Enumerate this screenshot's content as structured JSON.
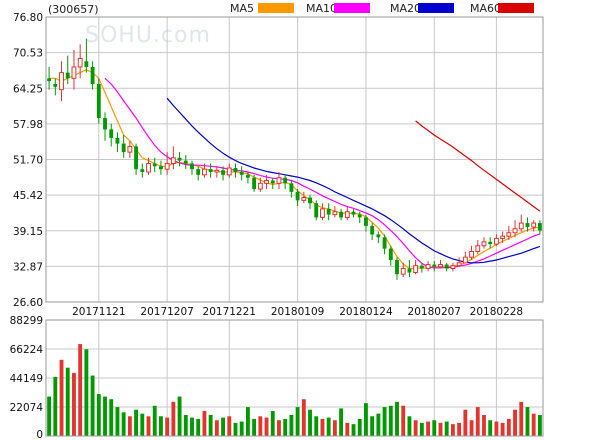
{
  "header": {
    "code": "(300657)",
    "watermark": "SOHU.com",
    "legend": [
      {
        "label": "MA5",
        "color": "#FF9900"
      },
      {
        "label": "MA10",
        "color": "#FF00FF"
      },
      {
        "label": "MA20",
        "color": "#0000CC"
      },
      {
        "label": "MA60",
        "color": "#DD0000"
      }
    ]
  },
  "colors": {
    "up": "#E3342F",
    "down": "#009900",
    "grid": "#C8C8C8",
    "border": "#999999"
  },
  "chart_data": [
    {
      "type": "candlestick",
      "title": "",
      "y_ticks": [
        "76.80",
        "70.53",
        "64.25",
        "57.98",
        "51.70",
        "45.42",
        "39.15",
        "32.87",
        "26.60"
      ],
      "ylim": [
        26.6,
        76.8
      ],
      "x_ticks": [
        {
          "label": "20171121",
          "index": 8
        },
        {
          "label": "20171207",
          "index": 19
        },
        {
          "label": "20171221",
          "index": 29
        },
        {
          "label": "20180109",
          "index": 40
        },
        {
          "label": "20180124",
          "index": 51
        },
        {
          "label": "20180207",
          "index": 62
        },
        {
          "label": "20180228",
          "index": 72
        }
      ],
      "candles": [
        {
          "o": 66,
          "c": 65.5,
          "h": 68,
          "l": 64
        },
        {
          "o": 65,
          "c": 64.5,
          "h": 66,
          "l": 63
        },
        {
          "o": 64,
          "c": 67,
          "h": 69,
          "l": 62
        },
        {
          "o": 67,
          "c": 66,
          "h": 70,
          "l": 65
        },
        {
          "o": 66,
          "c": 68,
          "h": 71,
          "l": 64
        },
        {
          "o": 68,
          "c": 69.5,
          "h": 72,
          "l": 66
        },
        {
          "o": 69,
          "c": 68,
          "h": 73,
          "l": 67
        },
        {
          "o": 68,
          "c": 65,
          "h": 69,
          "l": 64
        },
        {
          "o": 65,
          "c": 59,
          "h": 66,
          "l": 58
        },
        {
          "o": 59,
          "c": 57,
          "h": 60,
          "l": 55
        },
        {
          "o": 57,
          "c": 55.5,
          "h": 58,
          "l": 54
        },
        {
          "o": 55.5,
          "c": 54.5,
          "h": 56.5,
          "l": 53
        },
        {
          "o": 54.5,
          "c": 53,
          "h": 56,
          "l": 52
        },
        {
          "o": 53,
          "c": 54,
          "h": 55,
          "l": 52
        },
        {
          "o": 54,
          "c": 50,
          "h": 54.5,
          "l": 49
        },
        {
          "o": 50,
          "c": 49.5,
          "h": 51,
          "l": 48.5
        },
        {
          "o": 49.5,
          "c": 51,
          "h": 52,
          "l": 49
        },
        {
          "o": 51,
          "c": 50.5,
          "h": 52,
          "l": 49.5
        },
        {
          "o": 50.5,
          "c": 50,
          "h": 51.5,
          "l": 49
        },
        {
          "o": 50,
          "c": 51,
          "h": 53,
          "l": 49
        },
        {
          "o": 51,
          "c": 52,
          "h": 54,
          "l": 50
        },
        {
          "o": 52,
          "c": 51.5,
          "h": 53,
          "l": 50.5
        },
        {
          "o": 51.5,
          "c": 51,
          "h": 52.5,
          "l": 50
        },
        {
          "o": 51,
          "c": 50,
          "h": 51.5,
          "l": 49
        },
        {
          "o": 50,
          "c": 49,
          "h": 50.5,
          "l": 48
        },
        {
          "o": 49,
          "c": 50,
          "h": 51,
          "l": 48.5
        },
        {
          "o": 50,
          "c": 49.5,
          "h": 51,
          "l": 48.5
        },
        {
          "o": 49.5,
          "c": 49.8,
          "h": 50.5,
          "l": 48.5
        },
        {
          "o": 49.8,
          "c": 49,
          "h": 50.5,
          "l": 48
        },
        {
          "o": 49,
          "c": 50.2,
          "h": 51,
          "l": 48.5
        },
        {
          "o": 50.2,
          "c": 49.5,
          "h": 51,
          "l": 48.5
        },
        {
          "o": 49.5,
          "c": 49,
          "h": 50.5,
          "l": 48
        },
        {
          "o": 49,
          "c": 48.5,
          "h": 49.5,
          "l": 47.5
        },
        {
          "o": 48.5,
          "c": 46.5,
          "h": 49,
          "l": 46
        },
        {
          "o": 46.5,
          "c": 47.5,
          "h": 48.5,
          "l": 46
        },
        {
          "o": 47.5,
          "c": 48,
          "h": 49,
          "l": 46.5
        },
        {
          "o": 48,
          "c": 47.5,
          "h": 48.5,
          "l": 46.5
        },
        {
          "o": 47.5,
          "c": 48.5,
          "h": 49.5,
          "l": 46.5
        },
        {
          "o": 48.5,
          "c": 47.5,
          "h": 49,
          "l": 46.5
        },
        {
          "o": 47.5,
          "c": 46,
          "h": 48,
          "l": 45
        },
        {
          "o": 46,
          "c": 44.5,
          "h": 46.5,
          "l": 43.5
        },
        {
          "o": 44.5,
          "c": 45,
          "h": 46,
          "l": 44
        },
        {
          "o": 45,
          "c": 44,
          "h": 45.5,
          "l": 43
        },
        {
          "o": 44,
          "c": 41.5,
          "h": 44.5,
          "l": 41
        },
        {
          "o": 41.5,
          "c": 43,
          "h": 44,
          "l": 41
        },
        {
          "o": 43,
          "c": 42,
          "h": 44,
          "l": 41
        },
        {
          "o": 42,
          "c": 42.5,
          "h": 43.5,
          "l": 41.5
        },
        {
          "o": 42.5,
          "c": 41.5,
          "h": 43,
          "l": 41
        },
        {
          "o": 41.5,
          "c": 42.5,
          "h": 43.5,
          "l": 41
        },
        {
          "o": 42.5,
          "c": 42,
          "h": 43,
          "l": 41.5
        },
        {
          "o": 42,
          "c": 41.5,
          "h": 42.5,
          "l": 40.5
        },
        {
          "o": 41.5,
          "c": 40,
          "h": 42,
          "l": 39
        },
        {
          "o": 40,
          "c": 38.5,
          "h": 40.5,
          "l": 37.5
        },
        {
          "o": 38.5,
          "c": 38,
          "h": 39,
          "l": 37
        },
        {
          "o": 38,
          "c": 36,
          "h": 38.5,
          "l": 35
        },
        {
          "o": 36,
          "c": 34,
          "h": 36.5,
          "l": 33
        },
        {
          "o": 34,
          "c": 31.5,
          "h": 34.5,
          "l": 30.5
        },
        {
          "o": 31.5,
          "c": 32.5,
          "h": 33.5,
          "l": 31
        },
        {
          "o": 32.5,
          "c": 31.8,
          "h": 34,
          "l": 31
        },
        {
          "o": 31.8,
          "c": 33,
          "h": 34,
          "l": 31.5
        },
        {
          "o": 33,
          "c": 32.5,
          "h": 33.5,
          "l": 31.8
        },
        {
          "o": 32.5,
          "c": 33.2,
          "h": 33.8,
          "l": 32
        },
        {
          "o": 33.2,
          "c": 32.8,
          "h": 33.8,
          "l": 32
        },
        {
          "o": 32.8,
          "c": 33.2,
          "h": 34,
          "l": 32.5
        },
        {
          "o": 33.2,
          "c": 32.5,
          "h": 33.5,
          "l": 32
        },
        {
          "o": 32.5,
          "c": 33,
          "h": 33.5,
          "l": 32
        },
        {
          "o": 33,
          "c": 33.5,
          "h": 34.5,
          "l": 32.8
        },
        {
          "o": 33.5,
          "c": 34.5,
          "h": 35.5,
          "l": 33.5
        },
        {
          "o": 34.5,
          "c": 35.5,
          "h": 36.5,
          "l": 34
        },
        {
          "o": 35.5,
          "c": 36.5,
          "h": 37.5,
          "l": 35
        },
        {
          "o": 36.5,
          "c": 37.2,
          "h": 38,
          "l": 36
        },
        {
          "o": 37.2,
          "c": 36.8,
          "h": 38,
          "l": 36
        },
        {
          "o": 36.8,
          "c": 37.8,
          "h": 38.5,
          "l": 36.5
        },
        {
          "o": 37.8,
          "c": 38.2,
          "h": 39,
          "l": 37
        },
        {
          "o": 38.2,
          "c": 38.8,
          "h": 40,
          "l": 37.5
        },
        {
          "o": 38.8,
          "c": 39.5,
          "h": 41,
          "l": 38
        },
        {
          "o": 39.5,
          "c": 40.5,
          "h": 42,
          "l": 39
        },
        {
          "o": 40.5,
          "c": 39.8,
          "h": 41.5,
          "l": 39
        },
        {
          "o": 39.8,
          "c": 40.5,
          "h": 41,
          "l": 39
        },
        {
          "o": 40.5,
          "c": 39.2,
          "h": 41,
          "l": 38.5
        }
      ],
      "series": [
        {
          "name": "MA5",
          "color": "#FF9900",
          "values": [
            66,
            66,
            65.5,
            66,
            66.5,
            67,
            67.5,
            67,
            66,
            63.5,
            61,
            58.5,
            56,
            55,
            53.5,
            52,
            51.5,
            51,
            50.5,
            50.5,
            51,
            51.2,
            51,
            50.8,
            50.5,
            50,
            49.8,
            49.6,
            49.5,
            49.5,
            49.5,
            49.4,
            49.2,
            48.6,
            48.1,
            47.6,
            47.3,
            47.5,
            47.7,
            47.2,
            46.2,
            45.3,
            44.6,
            43.7,
            43.2,
            43,
            42.6,
            42.3,
            42.2,
            42.2,
            42.1,
            41.6,
            40.6,
            39.6,
            38.2,
            36.4,
            34.6,
            33.3,
            32.5,
            32.5,
            32.6,
            32.6,
            32.8,
            32.9,
            32.9,
            32.9,
            33.1,
            33.5,
            34.1,
            34.8,
            35.5,
            36.1,
            36.7,
            37.3,
            37.8,
            38.3,
            38.8,
            39.3,
            39.6,
            39.8
          ]
        },
        {
          "name": "MA10",
          "color": "#FF00FF",
          "values": [
            null,
            null,
            null,
            null,
            null,
            null,
            null,
            null,
            null,
            66,
            65,
            63.6,
            62,
            60.5,
            59,
            57.3,
            55.7,
            54.2,
            53,
            52.2,
            51.5,
            51.1,
            50.8,
            50.7,
            50.7,
            50.6,
            50.5,
            50.4,
            50.2,
            50,
            49.8,
            49.7,
            49.5,
            49.2,
            48.9,
            48.6,
            48.4,
            48.3,
            48.2,
            48,
            47.6,
            47,
            46.5,
            45.9,
            45.3,
            44.8,
            44.3,
            43.8,
            43.4,
            43.1,
            42.7,
            42.3,
            41.8,
            41.1,
            40.2,
            39.2,
            38.1,
            36.9,
            35.6,
            34.4,
            33.4,
            32.8,
            32.6,
            32.6,
            32.7,
            32.7,
            32.9,
            33.1,
            33.4,
            33.8,
            34.2,
            34.7,
            35.2,
            35.7,
            36.2,
            36.7,
            37.2,
            37.7,
            38.2,
            38.6
          ]
        },
        {
          "name": "MA20",
          "color": "#0000CC",
          "values": [
            null,
            null,
            null,
            null,
            null,
            null,
            null,
            null,
            null,
            null,
            null,
            null,
            null,
            null,
            null,
            null,
            null,
            null,
            null,
            62.5,
            61.2,
            60,
            58.8,
            57.6,
            56.5,
            55.5,
            54.5,
            53.6,
            52.8,
            52.1,
            51.5,
            51,
            50.6,
            50.2,
            49.9,
            49.6,
            49.4,
            49.2,
            49,
            48.8,
            48.6,
            48.3,
            48,
            47.6,
            47.1,
            46.6,
            46,
            45.5,
            45,
            44.5,
            44,
            43.5,
            43,
            42.4,
            41.8,
            41.1,
            40.3,
            39.5,
            38.6,
            37.8,
            37,
            36.3,
            35.6,
            35.1,
            34.6,
            34.2,
            33.9,
            33.6,
            33.5,
            33.5,
            33.6,
            33.8,
            34,
            34.3,
            34.6,
            34.9,
            35.2,
            35.6,
            36,
            36.4
          ]
        },
        {
          "name": "MA60",
          "color": "#DD0000",
          "values": [
            null,
            null,
            null,
            null,
            null,
            null,
            null,
            null,
            null,
            null,
            null,
            null,
            null,
            null,
            null,
            null,
            null,
            null,
            null,
            null,
            null,
            null,
            null,
            null,
            null,
            null,
            null,
            null,
            null,
            null,
            null,
            null,
            null,
            null,
            null,
            null,
            null,
            null,
            null,
            null,
            null,
            null,
            null,
            null,
            null,
            null,
            null,
            null,
            null,
            null,
            null,
            null,
            null,
            null,
            null,
            null,
            null,
            null,
            null,
            58.5,
            57.6,
            56.8,
            56,
            55.3,
            54.6,
            53.9,
            53.1,
            52.3,
            51.5,
            50.6,
            49.8,
            49,
            48.2,
            47.4,
            46.6,
            45.8,
            45,
            44.2,
            43.4,
            42.6
          ]
        }
      ]
    },
    {
      "type": "bar",
      "title": "",
      "y_ticks": [
        "88299",
        "66224",
        "44149",
        "22074",
        "0"
      ],
      "ylim": [
        0,
        88299
      ],
      "volumes": [
        30000,
        45000,
        58000,
        52000,
        48000,
        70000,
        66000,
        46000,
        32000,
        30000,
        28000,
        22000,
        18000,
        15000,
        20000,
        17000,
        15000,
        23000,
        15000,
        14000,
        26000,
        30000,
        16000,
        14000,
        13000,
        19000,
        16000,
        12000,
        14000,
        15000,
        10000,
        11000,
        22000,
        13000,
        15000,
        14000,
        19000,
        12000,
        13000,
        16000,
        22000,
        28000,
        20000,
        15000,
        13000,
        14000,
        12000,
        21000,
        10000,
        9000,
        13000,
        25000,
        15000,
        17000,
        22000,
        23000,
        26000,
        23000,
        15000,
        12000,
        10000,
        11000,
        12000,
        10000,
        11000,
        9000,
        10000,
        20000,
        12000,
        22000,
        16000,
        12000,
        11000,
        10000,
        13000,
        20000,
        26000,
        22000,
        17000,
        16000
      ]
    }
  ]
}
